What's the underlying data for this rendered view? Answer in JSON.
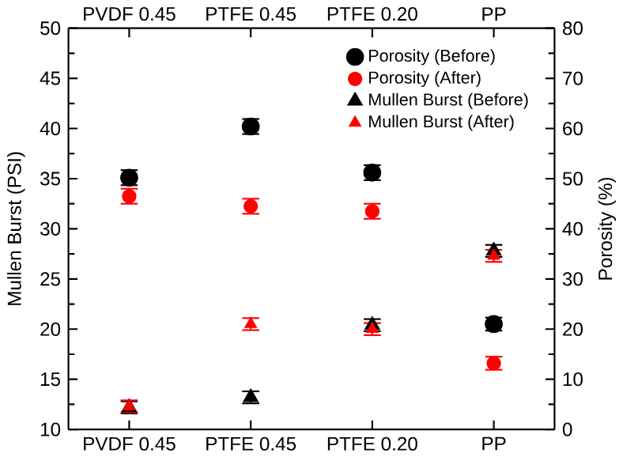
{
  "chart_data": {
    "type": "scatter",
    "categories": [
      "PVDF 0.45",
      "PTFE 0.45",
      "PTFE 0.20",
      "PP"
    ],
    "ylabel": "Mullen Burst (PSI)",
    "y2label": "Porosity (%)",
    "ylim": [
      10,
      50
    ],
    "yticks": [
      10,
      15,
      20,
      25,
      30,
      35,
      40,
      45,
      50
    ],
    "y2lim": [
      0,
      80
    ],
    "y2ticks": [
      0,
      10,
      20,
      30,
      40,
      50,
      60,
      70,
      80
    ],
    "legend": "top right",
    "grid": false,
    "series": [
      {
        "name": "Porosity (Before)",
        "color": "#000000",
        "axis": "y2",
        "marker": "circle",
        "values": [
          50.2,
          60.4,
          51.2,
          21.0
        ],
        "errors": [
          1.5,
          1.5,
          1.5,
          1.3
        ]
      },
      {
        "name": "Porosity (After)",
        "color": "#ff0000",
        "axis": "y2",
        "marker": "circle",
        "values": [
          46.5,
          44.5,
          43.5,
          13.2
        ],
        "errors": [
          1.5,
          1.5,
          1.5,
          1.3
        ]
      },
      {
        "name": "Mullen Burst (Before)",
        "color": "#000000",
        "axis": "y",
        "marker": "triangle",
        "values": [
          12.2,
          13.2,
          20.4,
          27.8
        ],
        "errors": [
          0.6,
          0.6,
          0.6,
          0.6
        ]
      },
      {
        "name": "Mullen Burst (After)",
        "color": "#ff0000",
        "axis": "y",
        "marker": "triangle",
        "values": [
          12.3,
          20.5,
          20.0,
          27.3
        ],
        "errors": [
          0.6,
          0.6,
          0.6,
          0.6
        ]
      }
    ]
  }
}
